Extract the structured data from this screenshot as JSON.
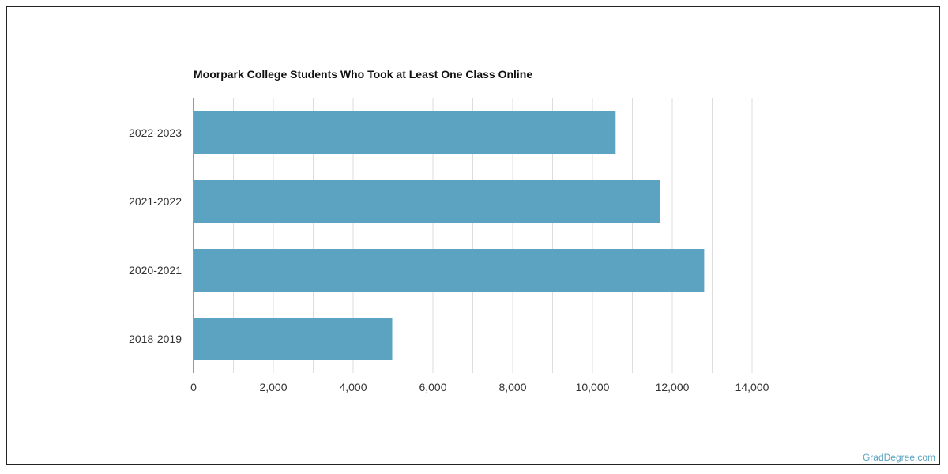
{
  "chart_data": {
    "type": "bar",
    "orientation": "horizontal",
    "title": "Moorpark College Students Who Took at Least One Class Online",
    "categories": [
      "2022-2023",
      "2021-2022",
      "2020-2021",
      "2018-2019"
    ],
    "values": [
      10580,
      11700,
      12800,
      4980
    ],
    "xlim": [
      0,
      14000
    ],
    "xticks": [
      0,
      2000,
      4000,
      6000,
      8000,
      10000,
      12000,
      14000
    ],
    "xtick_labels": [
      "0",
      "2,000",
      "4,000",
      "6,000",
      "8,000",
      "10,000",
      "12,000",
      "14,000"
    ],
    "grid": "vertical",
    "bar_color": "#5ba3c0",
    "grid_color": "#dddddd"
  },
  "watermark": "GradDegree.com"
}
